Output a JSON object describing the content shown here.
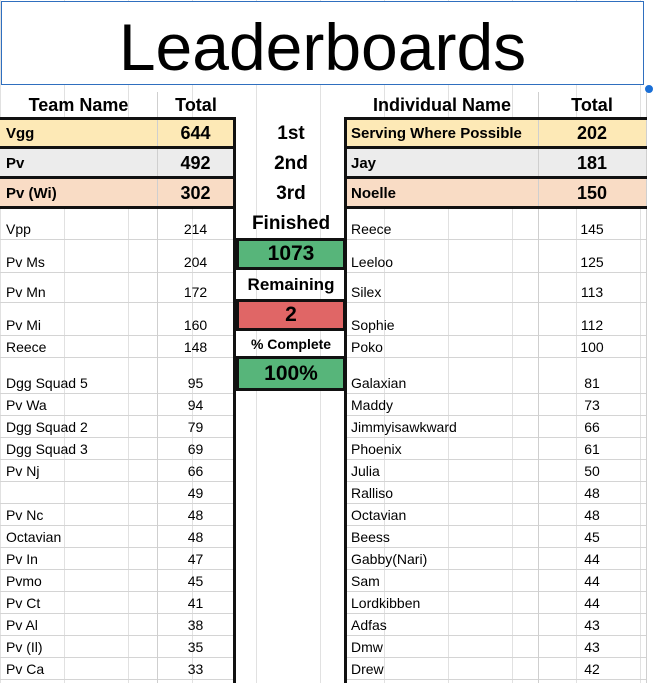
{
  "title": "Leaderboards",
  "headers": {
    "team_name": "Team Name",
    "team_total": "Total",
    "individual_name": "Individual Name",
    "individual_total": "Total"
  },
  "places": [
    "1st",
    "2nd",
    "3rd"
  ],
  "stats": {
    "finished_label": "Finished",
    "finished_value": "1073",
    "remaining_label": "Remaining",
    "remaining_value": "2",
    "complete_label": "% Complete",
    "complete_value": "100%"
  },
  "colors": {
    "gold": "#fde9b6",
    "silver": "#ececec",
    "bronze": "#f9dcc5",
    "finished": "#57b57a",
    "remaining": "#e06666",
    "selection": "#2f6fbf"
  },
  "teams": [
    {
      "name": "Vgg",
      "total": "644"
    },
    {
      "name": "Pv",
      "total": "492"
    },
    {
      "name": "Pv (Wi)",
      "total": "302"
    },
    {
      "name": "Vpp",
      "total": "214"
    },
    {
      "name": "Pv Ms",
      "total": "204"
    },
    {
      "name": "Pv Mn",
      "total": "172"
    },
    {
      "name": "Pv Mi",
      "total": "160"
    },
    {
      "name": "Reece",
      "total": "148"
    },
    {
      "name": "Dgg Squad 5",
      "total": "95"
    },
    {
      "name": "Pv Wa",
      "total": "94"
    },
    {
      "name": "Dgg Squad 2",
      "total": "79"
    },
    {
      "name": "Dgg Squad 3",
      "total": "69"
    },
    {
      "name": "Pv Nj",
      "total": "66"
    },
    {
      "name": "",
      "total": "49"
    },
    {
      "name": "Pv Nc",
      "total": "48"
    },
    {
      "name": "Octavian",
      "total": "48"
    },
    {
      "name": "Pv In",
      "total": "47"
    },
    {
      "name": "Pvmo",
      "total": "45"
    },
    {
      "name": "Pv Ct",
      "total": "41"
    },
    {
      "name": "Pv Al",
      "total": "38"
    },
    {
      "name": "Pv (Il)",
      "total": "35"
    },
    {
      "name": "Pv Ca",
      "total": "33"
    }
  ],
  "individuals": [
    {
      "name": "Serving Where Possible",
      "total": "202"
    },
    {
      "name": "Jay",
      "total": "181"
    },
    {
      "name": "Noelle",
      "total": "150"
    },
    {
      "name": "Reece",
      "total": "145"
    },
    {
      "name": "Leeloo",
      "total": "125"
    },
    {
      "name": "Silex",
      "total": "113"
    },
    {
      "name": "Sophie",
      "total": "112"
    },
    {
      "name": "Poko",
      "total": "100"
    },
    {
      "name": "Galaxian",
      "total": "81"
    },
    {
      "name": "Maddy",
      "total": "73"
    },
    {
      "name": "Jimmyisawkward",
      "total": "66"
    },
    {
      "name": "Phoenix",
      "total": "61"
    },
    {
      "name": "Julia",
      "total": "50"
    },
    {
      "name": "Ralliso",
      "total": "48"
    },
    {
      "name": "Octavian",
      "total": "48"
    },
    {
      "name": "Beess",
      "total": "45"
    },
    {
      "name": "Gabby(Nari)",
      "total": "44"
    },
    {
      "name": "Sam",
      "total": "44"
    },
    {
      "name": "Lordkibben",
      "total": "44"
    },
    {
      "name": "Adfas",
      "total": "43"
    },
    {
      "name": "Dmw",
      "total": "43"
    },
    {
      "name": "Drew",
      "total": "42"
    }
  ]
}
